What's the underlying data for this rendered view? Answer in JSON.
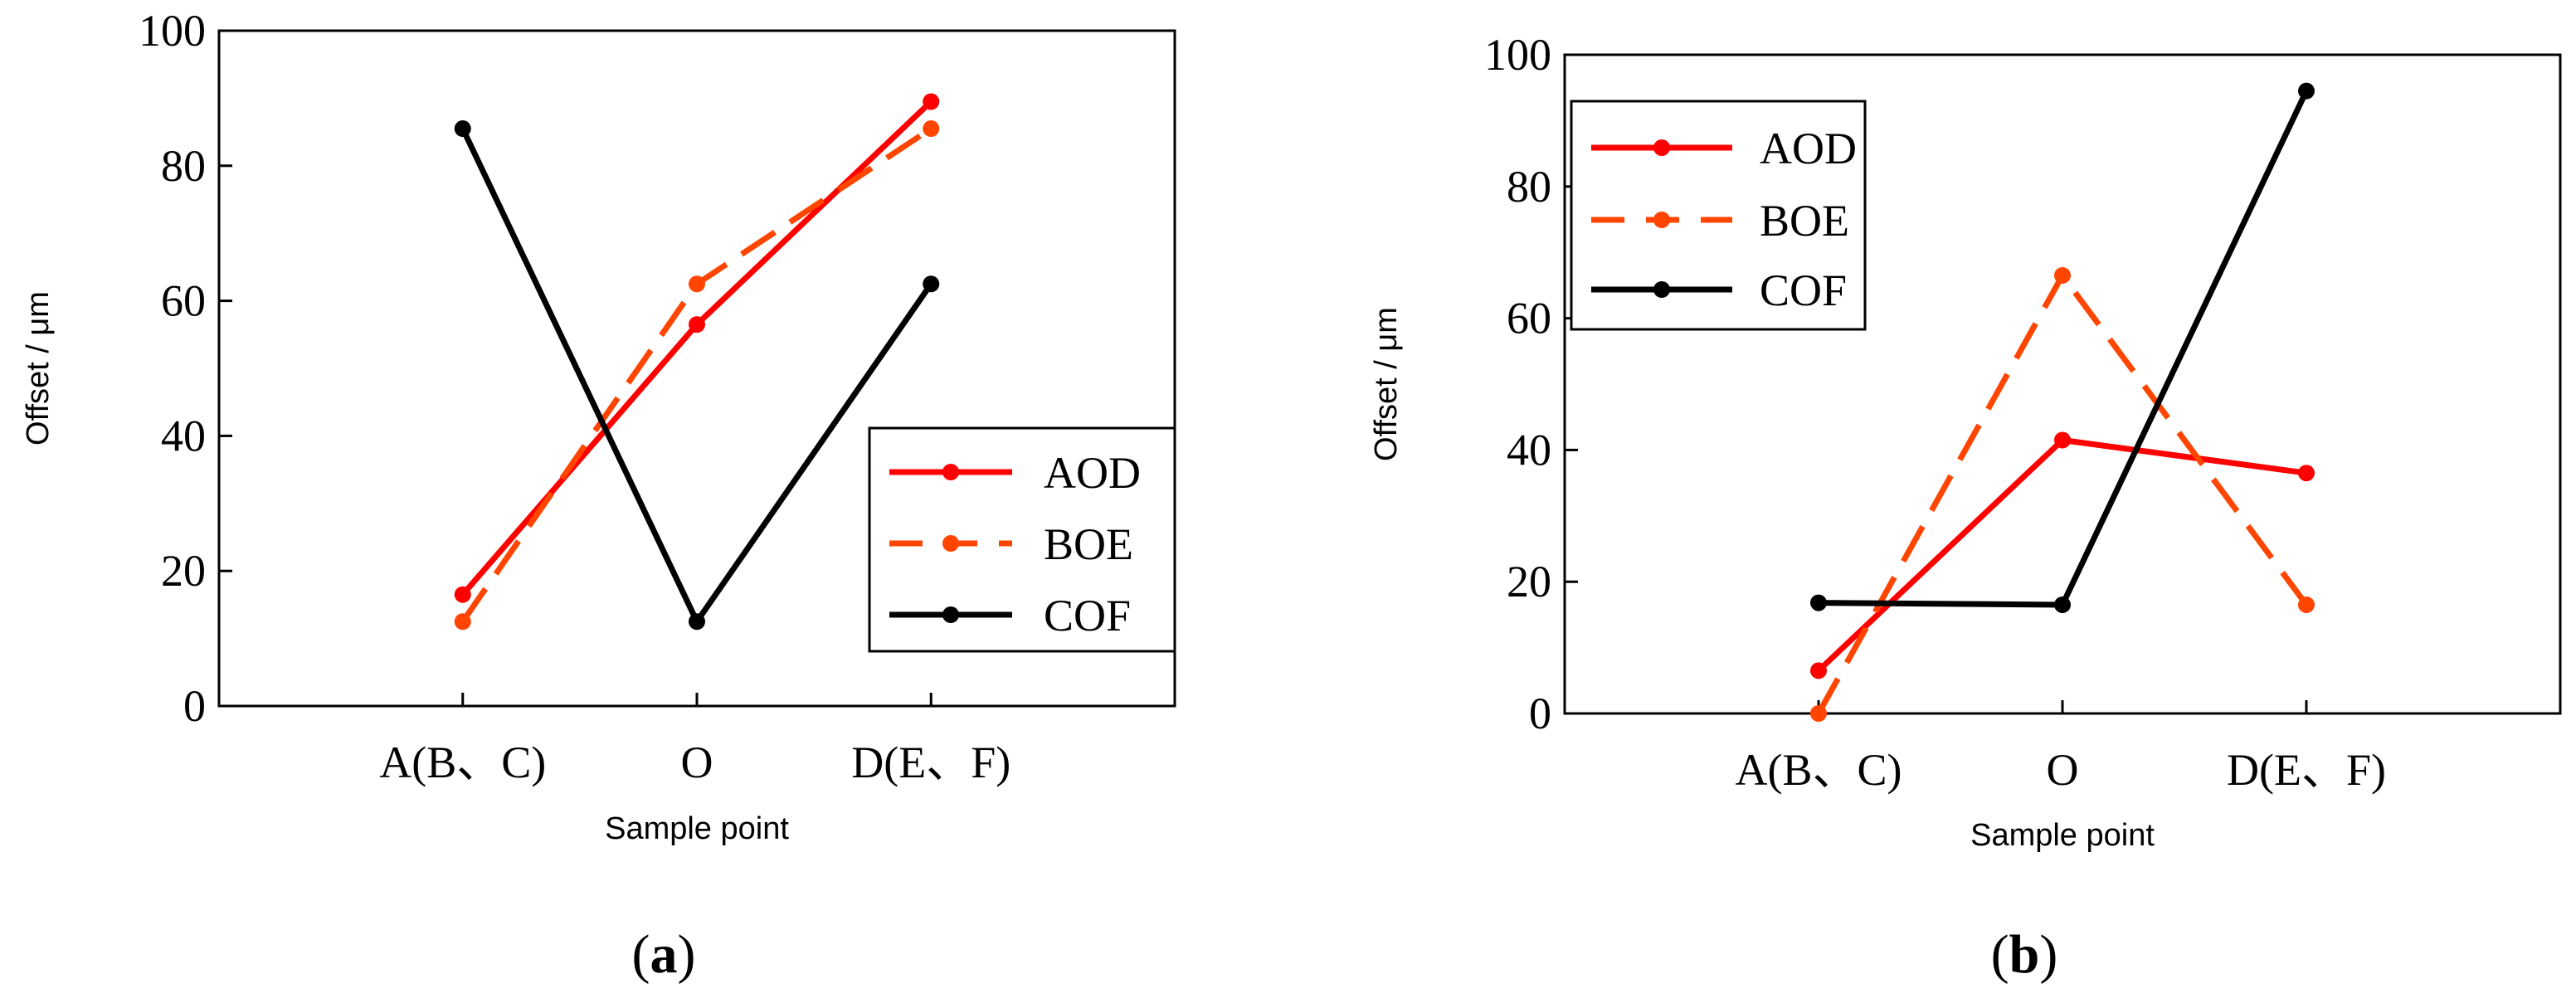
{
  "chart_data": [
    {
      "type": "line",
      "panel_label": "(a)",
      "panel_letter": "a",
      "categories": [
        "A(B、C)",
        "O",
        "D(E、F)"
      ],
      "series": [
        {
          "name": "AOD",
          "values": [
            16.5,
            56.5,
            89.5
          ],
          "color": "#ff0000",
          "dash": "solid"
        },
        {
          "name": "BOE",
          "values": [
            12.5,
            62.5,
            85.5
          ],
          "color": "#ff4500",
          "dash": "dashed"
        },
        {
          "name": "COF",
          "values": [
            85.5,
            12.5,
            62.5
          ],
          "color": "#000000",
          "dash": "solid"
        }
      ],
      "xlabel": "Sample point",
      "ylabel": "Offset / μm",
      "ylim": [
        0,
        100
      ],
      "yticks": [
        0,
        20,
        40,
        60,
        80,
        100
      ],
      "legend_position": "bottom-right"
    },
    {
      "type": "line",
      "panel_label": "(b)",
      "panel_letter": "b",
      "categories": [
        "A(B、C)",
        "O",
        "D(E、F)"
      ],
      "series": [
        {
          "name": "AOD",
          "values": [
            6.5,
            41.5,
            36.5
          ],
          "color": "#ff0000",
          "dash": "solid"
        },
        {
          "name": "BOE",
          "values": [
            0,
            66.5,
            16.5
          ],
          "color": "#ff4500",
          "dash": "dashed"
        },
        {
          "name": "COF",
          "values": [
            16.8,
            16.5,
            94.5
          ],
          "color": "#000000",
          "dash": "solid"
        }
      ],
      "xlabel": "Sample point",
      "ylabel": "Offset / μm",
      "ylim": [
        0,
        100
      ],
      "yticks": [
        0,
        20,
        40,
        60,
        80,
        100
      ],
      "legend_position": "top-left"
    }
  ]
}
